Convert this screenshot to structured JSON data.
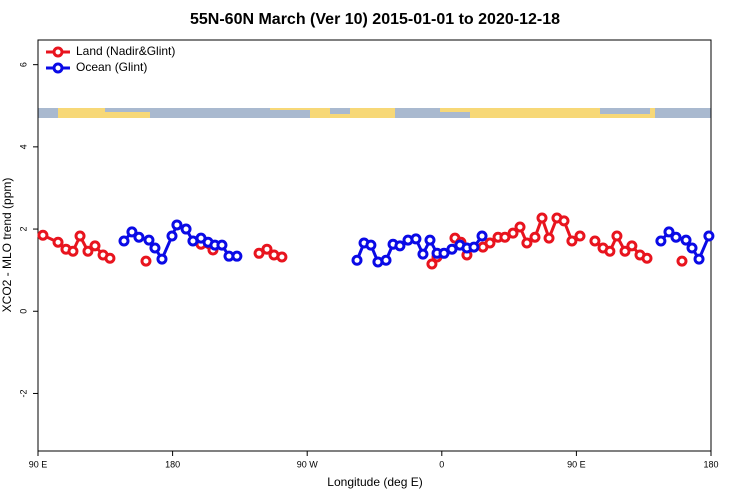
{
  "chart_data": {
    "type": "line",
    "title": "55N-60N March (Ver 10)   2015-01-01 to 2020-12-18",
    "x_label": "Longitude (deg E)",
    "y_label": "XCO2 - MLO trend (ppm)",
    "xlim": [
      90,
      540
    ],
    "xticks": [
      {
        "value": 90,
        "label": "90 E"
      },
      {
        "value": 180,
        "label": "180"
      },
      {
        "value": 270,
        "label": "90 W"
      },
      {
        "value": 360,
        "label": "0"
      },
      {
        "value": 450,
        "label": "90 E"
      },
      {
        "value": 540,
        "label": "180"
      }
    ],
    "ylim": [
      -3.4,
      6.6
    ],
    "yticks": [
      -2,
      0,
      2,
      4,
      6
    ],
    "legend": "topleft",
    "series": [
      {
        "name": "Land (Nadir&Glint)",
        "color": "#e8141e",
        "x": [
          93.3,
          103.4,
          108.7,
          113.4,
          118.1,
          123.4,
          128.1,
          133.5,
          138.1,
          null,
          162.2,
          null,
          199.0,
          207.0,
          null,
          237.8,
          243.1,
          247.8,
          253.1,
          null,
          353.4,
          356.8,
          null,
          368.8,
          372.8,
          376.8,
          null,
          387.5,
          392.2,
          397.6,
          402.2,
          407.6,
          412.3,
          416.9,
          422.3,
          427.0,
          431.7,
          437.0,
          441.7,
          447.0,
          452.4,
          null,
          462.4,
          467.8,
          472.4,
          477.1,
          482.5,
          487.1,
          492.5,
          497.2,
          null,
          520.6
        ],
        "values": [
          1.85,
          1.68,
          1.51,
          1.46,
          1.83,
          1.46,
          1.59,
          1.37,
          1.29,
          null,
          1.22,
          null,
          1.63,
          1.49,
          null,
          1.41,
          1.51,
          1.37,
          1.32,
          null,
          1.15,
          1.32,
          null,
          1.78,
          1.68,
          1.37,
          null,
          1.56,
          1.66,
          1.8,
          1.8,
          1.9,
          2.05,
          1.66,
          1.8,
          2.27,
          1.78,
          2.27,
          2.2,
          1.71,
          1.83,
          null,
          1.71,
          1.54,
          1.46,
          1.83,
          1.46,
          1.59,
          1.37,
          1.29,
          null,
          1.22
        ]
      },
      {
        "name": "Ocean (Glint)",
        "color": "#0a0ae6",
        "x": [
          147.5,
          152.8,
          157.5,
          164.2,
          168.2,
          172.9,
          179.6,
          182.9,
          189.0,
          193.6,
          199.0,
          203.7,
          208.3,
          213.0,
          217.7,
          223.0,
          null,
          303.3,
          308.0,
          312.6,
          317.3,
          322.7,
          327.4,
          332.0,
          337.4,
          342.7,
          347.4,
          352.1,
          356.8,
          361.5,
          366.8,
          372.1,
          376.8,
          381.5,
          386.9,
          null,
          506.5,
          511.9,
          516.6,
          523.3,
          527.3,
          532.0,
          538.6
        ],
        "values": [
          1.71,
          1.93,
          1.8,
          1.73,
          1.54,
          1.27,
          1.83,
          2.1,
          2.0,
          1.71,
          1.78,
          1.68,
          1.61,
          1.61,
          1.34,
          1.34,
          null,
          1.24,
          1.66,
          1.61,
          1.2,
          1.24,
          1.63,
          1.59,
          1.73,
          1.76,
          1.39,
          1.73,
          1.41,
          1.41,
          1.51,
          1.61,
          1.54,
          1.56,
          1.83,
          null,
          1.71,
          1.93,
          1.8,
          1.73,
          1.54,
          1.27,
          1.83
        ]
      }
    ]
  }
}
